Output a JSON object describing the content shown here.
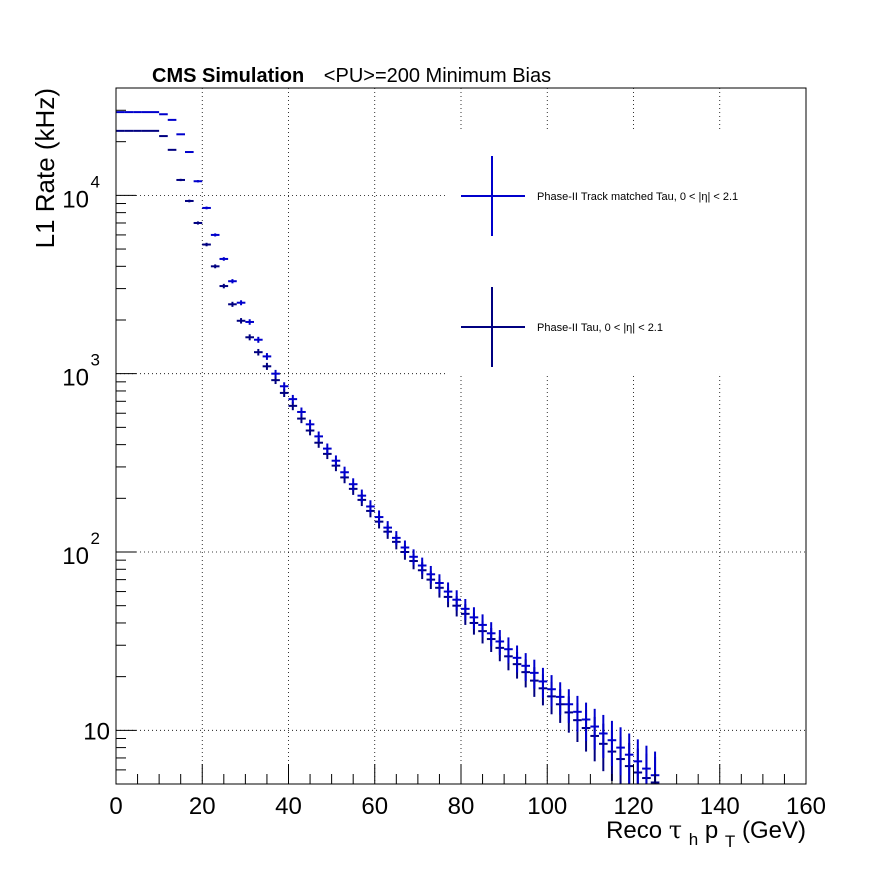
{
  "chart_data": {
    "type": "scatter",
    "title": {
      "bold": "CMS Simulation",
      "rest": "<PU>=200  Minimum Bias"
    },
    "xlabel": {
      "prefix": "Reco ",
      "tau": "τ",
      "h": "h",
      "p": " p",
      "T": "T",
      "unit": " (GeV)"
    },
    "ylabel": "L1 Rate (kHz)",
    "xlim": [
      0,
      160
    ],
    "ylim": [
      5,
      40000
    ],
    "yscale": "log",
    "grid": true,
    "legend_position": "top-right",
    "x_ticks": [
      "0",
      "20",
      "40",
      "60",
      "80",
      "100",
      "120",
      "140",
      "160"
    ],
    "y_ticks": [
      {
        "value": 10,
        "base": "10",
        "exp": ""
      },
      {
        "value": 100,
        "base": "10",
        "exp": "2"
      },
      {
        "value": 1000,
        "base": "10",
        "exp": "3"
      },
      {
        "value": 10000,
        "base": "10",
        "exp": "4"
      }
    ],
    "bin_width": 2,
    "series": [
      {
        "name": "Phase-II Track matched Tau, 0 < |η| < 2.1",
        "color": "#0000cc",
        "x_start": 0,
        "values": [
          29300,
          29300,
          29300,
          29300,
          29300,
          28500,
          26500,
          22000,
          17500,
          12000,
          8500,
          6000,
          4400,
          3300,
          2500,
          1950,
          1550,
          1250,
          1000,
          850,
          720,
          610,
          520,
          445,
          380,
          325,
          280,
          240,
          207,
          180,
          157,
          137,
          120,
          106,
          94,
          84,
          75,
          67,
          60,
          54,
          48,
          43,
          39,
          35,
          31.5,
          28.5,
          25.5,
          23,
          21,
          18.8,
          17,
          15.4,
          14,
          12.7,
          11.5,
          10.5,
          9.6,
          8.8,
          8,
          7.3,
          6.7,
          6.1,
          5.6
        ],
        "errors": [
          300,
          300,
          300,
          300,
          300,
          300,
          300,
          250,
          200,
          180,
          150,
          120,
          100,
          90,
          80,
          70,
          60,
          55,
          50,
          45,
          40,
          36,
          32,
          29,
          26,
          23,
          21,
          19,
          17,
          15,
          14,
          12,
          11,
          10,
          9.5,
          9,
          8.5,
          8,
          7.5,
          7,
          6.5,
          6,
          5.7,
          5.4,
          5,
          4.7,
          4.4,
          4.1,
          3.9,
          3.6,
          3.4,
          3.2,
          3,
          2.9,
          2.8,
          2.7,
          2.6,
          2.5,
          2.4,
          2.3,
          2.2,
          2.1,
          2
        ]
      },
      {
        "name": "Phase-II Tau, 0 < |η| < 2.1",
        "color": "#000080",
        "x_start": 0,
        "values": [
          23000,
          23000,
          23000,
          23000,
          23000,
          21500,
          18000,
          12200,
          9300,
          7000,
          5300,
          4000,
          3100,
          2450,
          1980,
          1600,
          1320,
          1100,
          920,
          780,
          660,
          560,
          480,
          410,
          355,
          305,
          262,
          226,
          196,
          170,
          148,
          130,
          114,
          100,
          89,
          79,
          70,
          63,
          56,
          50,
          45,
          40,
          36,
          32.5,
          29,
          26,
          23.5,
          21.2,
          19,
          17.2,
          15.5,
          14,
          12.6,
          11.4,
          10.3,
          9.3,
          8.4,
          7.6,
          6.9,
          6.3,
          5.8,
          5.4,
          5.1
        ],
        "errors": [
          250,
          250,
          250,
          250,
          250,
          250,
          230,
          180,
          160,
          140,
          120,
          100,
          90,
          80,
          70,
          62,
          56,
          50,
          45,
          40,
          36,
          32,
          29,
          26,
          23,
          21,
          19,
          17,
          15,
          13.5,
          12.5,
          11.5,
          10.5,
          9.5,
          9,
          8.5,
          8,
          7.5,
          7,
          6.5,
          6,
          5.6,
          5.3,
          5,
          4.6,
          4.3,
          4,
          3.8,
          3.6,
          3.4,
          3.2,
          3,
          2.9,
          2.8,
          2.7,
          2.6,
          2.5,
          2.4,
          2.3,
          2.2,
          2.1,
          2,
          2
        ]
      }
    ]
  }
}
